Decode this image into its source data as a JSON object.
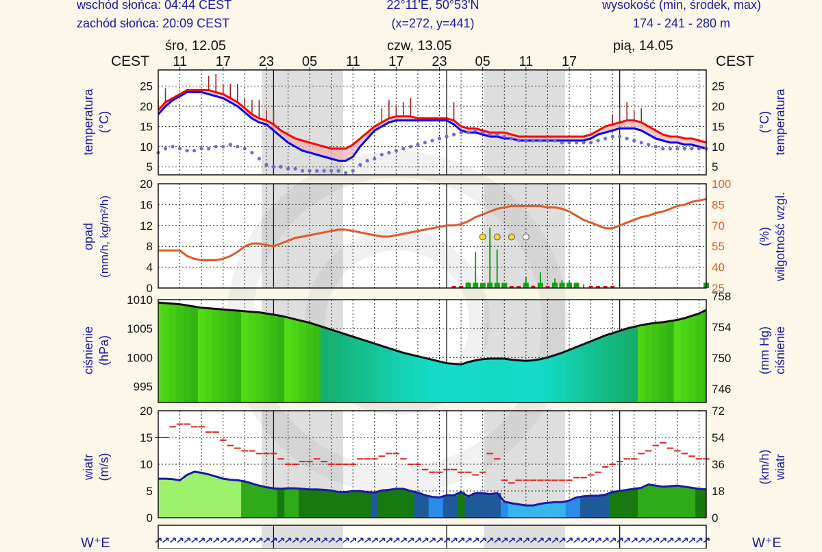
{
  "header": {
    "sunrise": "wschód słońca: 04:44 CEST",
    "sunset": "zachód słońca: 20:09 CEST",
    "coords": "22°11'E, 50°53'N",
    "grid": "(x=272,  y=441)",
    "alt_label": "wysokość (min, środek, max)",
    "alt_values": "174 - 241 - 280 m"
  },
  "timezone": "CEST",
  "days": [
    "śro, 12.05",
    "czw, 13.05",
    "pią, 14.05"
  ],
  "hour_labels": [
    "11",
    "17",
    "23",
    "05",
    "11",
    "17",
    "23",
    "05",
    "11",
    "17"
  ],
  "colors": {
    "frame_bg": "#ffffff",
    "night": "#dedede",
    "axis_text": "#1a1aa0",
    "humidity": "#e05a28",
    "pressure_line": "#111111",
    "temp_max": "#ff0000",
    "temp_min": "#0000ff",
    "dew": "#6b6bdc",
    "precip": "#14a014",
    "wind_gust": "#e02020",
    "wind_line": "#1a1aa0"
  },
  "panels": {
    "temperature": {
      "left_label": "temperatura",
      "left_unit": "(°C)",
      "right_label": "temperatura",
      "right_unit": "(°C)"
    },
    "precip": {
      "left_label": "opad",
      "left_unit": "(mm/h, kg/m²/h)",
      "right_label": "wilgotność wzgl.",
      "right_unit": "(%)"
    },
    "pressure": {
      "left_label": "ciśnienie",
      "left_unit": "(hPa)",
      "right_label": "ciśnienie",
      "right_unit": "(mm Hg)"
    },
    "wind": {
      "left_label": "wiatr",
      "left_unit": "(m/s)",
      "right_label": "wiatr",
      "right_unit": "(km/h)"
    }
  },
  "compass": "W⁺E",
  "chart_data": [
    {
      "type": "line",
      "name": "temperature",
      "x_start_hour": "12.05 08:00",
      "x_step_hours": 1,
      "ylim": [
        3,
        29
      ],
      "yticks_left": [
        5,
        10,
        15,
        20,
        25
      ],
      "yticks_right": [
        5,
        10,
        15,
        20,
        25
      ],
      "series": [
        {
          "name": "max",
          "values": [
            19,
            21,
            22,
            23,
            24,
            24,
            24,
            24,
            23.5,
            23,
            22,
            21,
            19.5,
            18,
            17,
            16.5,
            15.5,
            14,
            13,
            12,
            11.5,
            11,
            10.5,
            10,
            9.5,
            9.5,
            9.5,
            10.5,
            12,
            13.5,
            15,
            16,
            17,
            17.5,
            17.5,
            17.5,
            17,
            17,
            17,
            17,
            17,
            16.5,
            15,
            14.5,
            14.5,
            14,
            13.5,
            13.5,
            13.5,
            13,
            12.5,
            12.5,
            12.5,
            12.5,
            12.5,
            12.5,
            12.5,
            12.5,
            12.5,
            12.5,
            13,
            14,
            15,
            15.5,
            16,
            16.5,
            16.5,
            16,
            15,
            14,
            13,
            12.5,
            12.5,
            12,
            12,
            11.5,
            11
          ]
        },
        {
          "name": "min",
          "values": [
            18,
            20,
            21.5,
            22.5,
            23.5,
            23.5,
            23.5,
            23,
            22.5,
            22,
            21,
            20,
            18.5,
            17,
            16,
            15.5,
            14,
            12.5,
            11,
            10,
            9,
            8.5,
            8,
            7.5,
            7,
            6.5,
            6.5,
            7.5,
            10,
            12,
            14,
            15,
            16,
            16.5,
            16.5,
            16.5,
            16.5,
            16.5,
            16.5,
            16.5,
            16.5,
            15.5,
            14,
            13.5,
            13.5,
            13,
            12.5,
            12.5,
            12,
            12,
            11.5,
            11.5,
            11.5,
            11.5,
            11.5,
            11.5,
            11.5,
            11.5,
            11.5,
            11.5,
            12,
            13,
            13.5,
            14,
            14.5,
            14.5,
            14.5,
            14,
            13,
            12,
            11.5,
            11,
            11,
            10.5,
            10.5,
            10,
            9.5
          ]
        },
        {
          "name": "dew_point",
          "values": [
            8.5,
            9.5,
            10,
            9.5,
            9,
            9,
            9.5,
            9.5,
            10,
            10,
            10.5,
            10,
            9.5,
            8.5,
            7,
            5.5,
            5,
            5,
            4.5,
            4.5,
            4,
            4,
            4,
            4,
            4,
            4,
            3.5,
            4,
            5.5,
            6.5,
            7,
            8,
            8.5,
            9,
            9.5,
            10,
            10.5,
            11,
            11.5,
            12,
            12.5,
            13,
            13.5,
            13.5,
            14,
            13.5,
            13,
            13,
            12.5,
            12,
            11.5,
            11.5,
            11.5,
            11.5,
            11.5,
            11.5,
            11,
            11,
            11,
            11,
            11,
            11.5,
            12,
            12.5,
            12.5,
            12,
            11.5,
            11,
            10.5,
            10,
            9.5,
            9.5,
            9.5,
            9.5,
            9.5,
            9.5,
            9.5
          ]
        }
      ]
    },
    {
      "type": "line",
      "name": "precipitation_humidity",
      "ylim_left": [
        0,
        20
      ],
      "ylim_right": [
        25,
        100
      ],
      "yticks_left": [
        0,
        4,
        8,
        12,
        16,
        20
      ],
      "yticks_right": [
        25,
        40,
        55,
        70,
        85,
        100
      ],
      "series": [
        {
          "name": "humidity_pct",
          "values": [
            52,
            52,
            52,
            52,
            48,
            46,
            45,
            45,
            45,
            46,
            48,
            51,
            55,
            57,
            57,
            56,
            55,
            57,
            59,
            61,
            62,
            63,
            64,
            65,
            66,
            67,
            67,
            66,
            65,
            64,
            63,
            62,
            62,
            63,
            64,
            65,
            66,
            67,
            68,
            69,
            70,
            70,
            71,
            73,
            76,
            78,
            80,
            82,
            83,
            84,
            84,
            84,
            84,
            84,
            83,
            83,
            82,
            80,
            77,
            74,
            72,
            70,
            68,
            68,
            70,
            72,
            74,
            76,
            77,
            79,
            80,
            82,
            84,
            85,
            87,
            88,
            89
          ]
        },
        {
          "name": "precip_total",
          "values": [
            0,
            0,
            0,
            0,
            0,
            0,
            0,
            0,
            0,
            0,
            0,
            0,
            0,
            0,
            0,
            0,
            0,
            0,
            0,
            0,
            0,
            0,
            0,
            0,
            0,
            0,
            0,
            0,
            0,
            0,
            0,
            0,
            0,
            0,
            0,
            0,
            0,
            0,
            0,
            0,
            0,
            0.1,
            0.3,
            1.1,
            6.9,
            1,
            11.6,
            7.4,
            1,
            0.4,
            0.3,
            2.1,
            0.5,
            3,
            0.4,
            1.8,
            1.5,
            1.3,
            1,
            0.7,
            0.4,
            0.2,
            0.2,
            0.2,
            0,
            0,
            0,
            0,
            0,
            0,
            0,
            0,
            0,
            0,
            0,
            0,
            1
          ]
        }
      ]
    },
    {
      "type": "area",
      "name": "pressure",
      "ylim": [
        992.2,
        1010
      ],
      "yticks_left": [
        995,
        1000,
        1005,
        1010
      ],
      "yticks_right": [
        746,
        750,
        754,
        758
      ],
      "series": [
        {
          "name": "pressure_hpa",
          "values": [
            1009.5,
            1009.4,
            1009.3,
            1009.2,
            1009,
            1008.8,
            1008.6,
            1008.5,
            1008.4,
            1008.3,
            1008.2,
            1008.1,
            1008,
            1007.9,
            1007.8,
            1007.6,
            1007.4,
            1007.2,
            1006.9,
            1006.6,
            1006.3,
            1006,
            1005.6,
            1005.2,
            1004.8,
            1004.4,
            1004,
            1003.6,
            1003.2,
            1002.8,
            1002.4,
            1002,
            1001.6,
            1001.2,
            1000.8,
            1000.5,
            1000.2,
            999.9,
            999.6,
            999.3,
            999,
            998.9,
            998.8,
            999.2,
            999.5,
            999.7,
            999.8,
            999.8,
            999.8,
            999.6,
            999.5,
            999.4,
            999.5,
            999.7,
            1000,
            1000.4,
            1000.8,
            1001.3,
            1001.8,
            1002.3,
            1002.8,
            1003.3,
            1003.8,
            1004.2,
            1004.6,
            1005,
            1005.3,
            1005.6,
            1005.8,
            1006,
            1006.1,
            1006.3,
            1006.5,
            1006.8,
            1007.2,
            1007.6,
            1008.2
          ]
        }
      ]
    },
    {
      "type": "line",
      "name": "wind",
      "ylim": [
        0,
        20
      ],
      "yticks_left": [
        0,
        5,
        10,
        15,
        20
      ],
      "yticks_right": [
        0,
        18,
        36,
        54,
        72
      ],
      "series": [
        {
          "name": "wind_speed",
          "values": [
            7.3,
            7.3,
            7.2,
            7,
            8,
            8.6,
            8.4,
            8.1,
            7.7,
            7.3,
            7.1,
            7,
            6.8,
            6.4,
            6,
            5.7,
            5.5,
            5.4,
            5.5,
            5.5,
            5.4,
            5.3,
            5.3,
            5.2,
            5.1,
            4.8,
            4.8,
            5,
            5,
            4.8,
            4.7,
            5.1,
            5.2,
            5.4,
            5.4,
            5,
            4.7,
            4.2,
            3.9,
            3.8,
            4.2,
            4.2,
            4.8,
            4,
            4.6,
            4.6,
            4.4,
            4.6,
            3,
            2.7,
            2.5,
            2.3,
            2.3,
            2.6,
            2.8,
            2.9,
            2.9,
            3.2,
            3.8,
            4,
            4.1,
            4.1,
            4.3,
            4.8,
            5,
            5.2,
            5.4,
            5.6,
            6.2,
            6,
            5.8,
            5.9,
            6,
            5.8,
            5.6,
            5.4,
            5.3
          ]
        },
        {
          "name": "wind_gust",
          "values": [
            15,
            15,
            17,
            17.5,
            17.5,
            17,
            17,
            16,
            16,
            14.5,
            13.5,
            13,
            12.5,
            12.5,
            12,
            12,
            12,
            11,
            10,
            10,
            10.5,
            10.5,
            11,
            10.5,
            10,
            10,
            10,
            10,
            11,
            11,
            11,
            11.5,
            12,
            12,
            11,
            10,
            10,
            9,
            8.5,
            8.5,
            9,
            9,
            8.5,
            8.5,
            8,
            8.5,
            12,
            11,
            7,
            6.5,
            7,
            7,
            7,
            7,
            7,
            7,
            7,
            7,
            7.5,
            7.5,
            8,
            8.5,
            9.5,
            10,
            10.5,
            11,
            11,
            12,
            12.5,
            13.5,
            14,
            13,
            12.5,
            12,
            11.5,
            11,
            11
          ]
        }
      ]
    }
  ]
}
